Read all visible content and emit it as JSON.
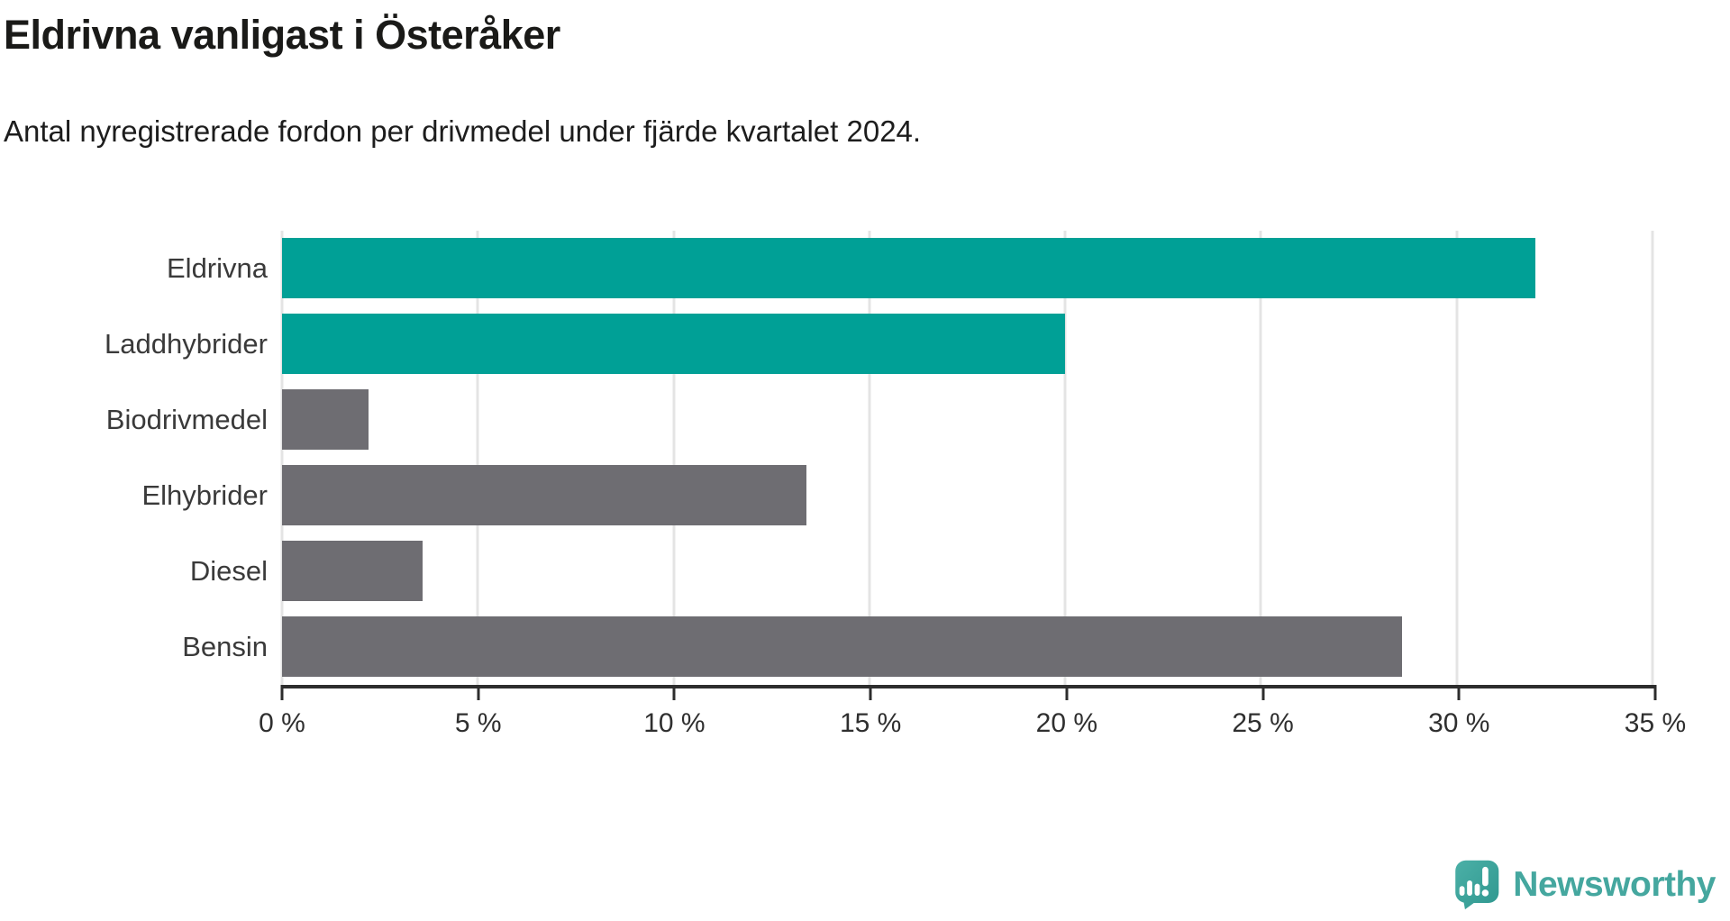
{
  "header": {
    "title": "Eldrivna vanligast i Österåker",
    "subtitle": "Antal nyregistrerade fordon per drivmedel under fjärde kvartalet 2024."
  },
  "colors": {
    "accent_teal": "#00a096",
    "neutral_gray": "#6e6d72",
    "gridline": "#e4e4e4",
    "axis": "#2d2d2d",
    "title_text": "#1a1a18",
    "label_text": "#3a3a3a",
    "brand_teal": "#45a79f"
  },
  "chart_data": {
    "type": "bar",
    "orientation": "horizontal",
    "title": "Eldrivna vanligast i Österåker",
    "subtitle": "Antal nyregistrerade fordon per drivmedel under fjärde kvartalet 2024.",
    "categories": [
      "Eldrivna",
      "Laddhybrider",
      "Biodrivmedel",
      "Elhybrider",
      "Diesel",
      "Bensin"
    ],
    "values": [
      32.0,
      20.0,
      2.2,
      13.4,
      3.6,
      28.6
    ],
    "unit": "%",
    "bar_colors": [
      "#00a096",
      "#00a096",
      "#6e6d72",
      "#6e6d72",
      "#6e6d72",
      "#6e6d72"
    ],
    "xlim": [
      0,
      35
    ],
    "x_tick_labels": [
      "0 %",
      "5 %",
      "10 %",
      "15 %",
      "20 %",
      "25 %",
      "30 %",
      "35 %"
    ],
    "grid": "vertical",
    "legend": "none"
  },
  "branding": {
    "wordmark": "Newsworthy",
    "icon": "newsworthy-chart-bubble-icon"
  }
}
